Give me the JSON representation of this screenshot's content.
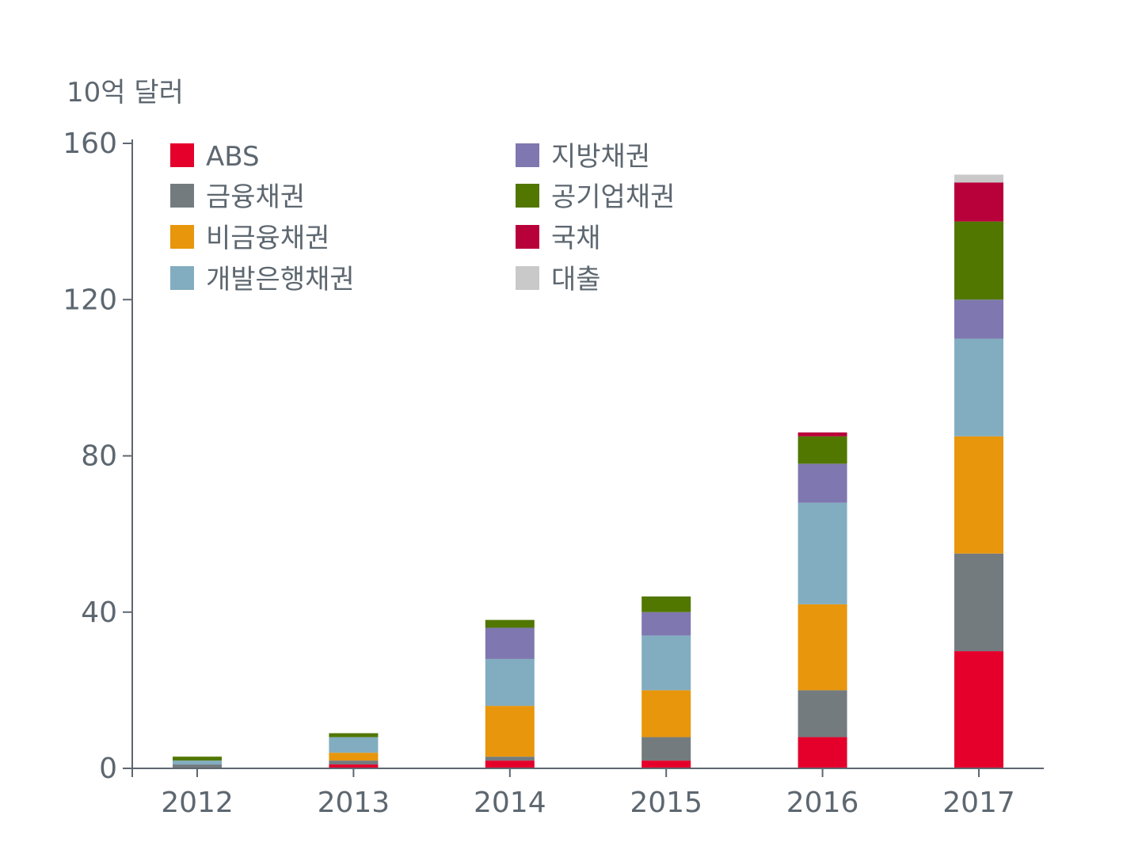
{
  "chart_data": {
    "type": "bar",
    "stacked": true,
    "unit_label": "10억 달러",
    "categories": [
      "2012",
      "2013",
      "2014",
      "2015",
      "2016",
      "2017"
    ],
    "ylim": [
      0,
      160
    ],
    "yticks": [
      "0",
      "40",
      "80",
      "120",
      "160"
    ],
    "grid": false,
    "legend_position": "top-left",
    "series": [
      {
        "name": "ABS",
        "color": "#e4002b",
        "values": [
          0.0,
          1.0,
          2.0,
          2.0,
          8.0,
          30.0
        ]
      },
      {
        "name": "금융채권",
        "color": "#737b7f",
        "values": [
          1.0,
          1.0,
          1.0,
          6.0,
          12.0,
          25.0
        ]
      },
      {
        "name": "비금융채권",
        "color": "#e8960c",
        "values": [
          0.0,
          2.0,
          13.0,
          12.0,
          22.0,
          30.0
        ]
      },
      {
        "name": "개발은행채권",
        "color": "#82adc0",
        "values": [
          1.0,
          4.0,
          12.0,
          14.0,
          26.0,
          25.0
        ]
      },
      {
        "name": "지방채권",
        "color": "#7f77af",
        "values": [
          0.0,
          0.0,
          8.0,
          6.0,
          10.0,
          10.0
        ]
      },
      {
        "name": "공기업채권",
        "color": "#517700",
        "values": [
          1.0,
          1.0,
          2.0,
          4.0,
          7.0,
          20.0
        ]
      },
      {
        "name": "국채",
        "color": "#b8003a",
        "values": [
          0.0,
          0.0,
          0.0,
          0.0,
          1.0,
          10.0
        ]
      },
      {
        "name": "대출",
        "color": "#c9c9c9",
        "values": [
          0.0,
          0.0,
          0.0,
          0.0,
          0.0,
          2.0
        ]
      }
    ]
  }
}
